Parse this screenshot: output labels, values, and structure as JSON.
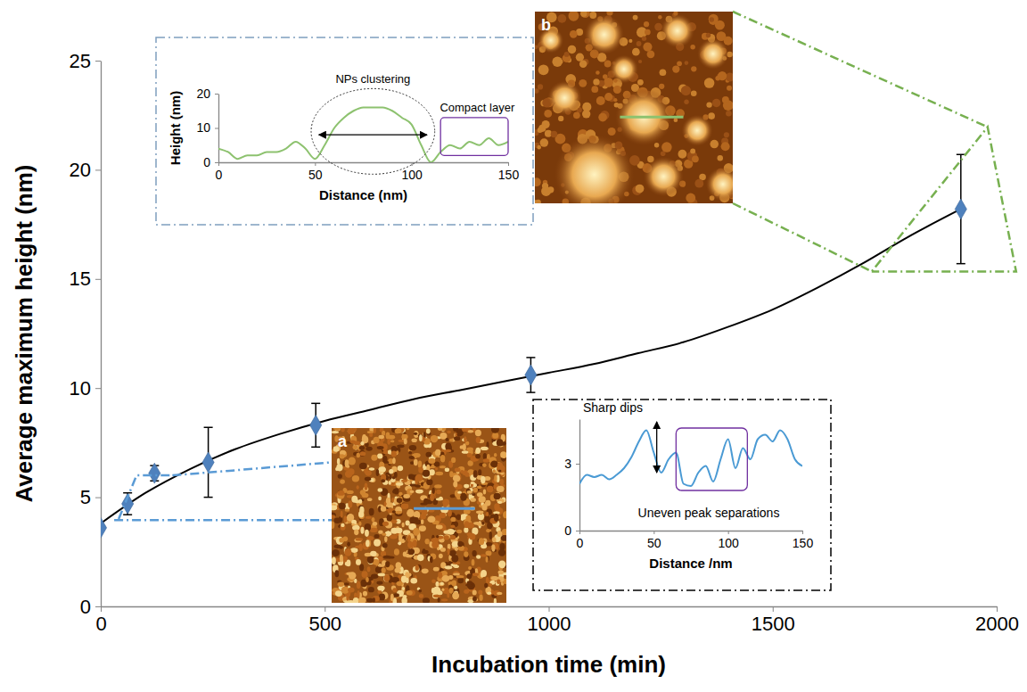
{
  "chart_data": [
    {
      "type": "scatter",
      "x_label": "Incubation time (min)",
      "y_label": "Average maximum height (nm)",
      "xlim": [
        0,
        2000
      ],
      "xticks": [
        0,
        500,
        1000,
        1500,
        2000
      ],
      "ylim": [
        0,
        25
      ],
      "yticks": [
        0,
        5,
        10,
        15,
        20,
        25
      ],
      "image_labels": [
        "a",
        "b"
      ],
      "series": [
        {
          "type": "scatter",
          "marker": "diamond",
          "color": "#4f81bd",
          "x": [
            0,
            60,
            120,
            240,
            480,
            960,
            1920
          ],
          "values": [
            3.6,
            4.7,
            6.1,
            6.6,
            8.3,
            10.6,
            18.2
          ],
          "errors": [
            null,
            0.5,
            0.35,
            1.6,
            1.0,
            0.8,
            2.5
          ]
        },
        {
          "type": "line",
          "color": "#000000",
          "line_style": "solid",
          "x": [
            0,
            100,
            200,
            300,
            400,
            500,
            600,
            700,
            800,
            900,
            1000,
            1100,
            1200,
            1300,
            1400,
            1500,
            1600,
            1700,
            1800,
            1920
          ],
          "values": [
            3.8,
            5.2,
            6.3,
            7.2,
            7.9,
            8.5,
            9.0,
            9.5,
            9.9,
            10.3,
            10.7,
            11.1,
            11.6,
            12.1,
            12.8,
            13.6,
            14.6,
            15.7,
            16.9,
            18.2
          ]
        }
      ]
    },
    {
      "type": "line",
      "x_label": "Distance (nm)",
      "y_label": "Height (nm)",
      "xlim": [
        0,
        150
      ],
      "xticks": [
        0,
        50,
        100,
        150
      ],
      "ylim": [
        0,
        20
      ],
      "yticks": [
        0,
        10,
        20
      ],
      "annotations": [
        "NPs clustering",
        "Compact layer"
      ],
      "series": [
        {
          "color": "#8dc26f",
          "x": [
            0,
            5,
            10,
            15,
            20,
            25,
            30,
            35,
            40,
            45,
            50,
            55,
            60,
            65,
            70,
            75,
            80,
            85,
            90,
            95,
            100,
            105,
            110,
            115,
            120,
            125,
            130,
            135,
            140,
            145,
            150
          ],
          "values": [
            4,
            3,
            1,
            2,
            2,
            3,
            3,
            4,
            6,
            4,
            1,
            5,
            10,
            13,
            15,
            16,
            16,
            16,
            15,
            13,
            11,
            5,
            0,
            3,
            5,
            4,
            6,
            5,
            7,
            5,
            6
          ]
        }
      ]
    },
    {
      "type": "line",
      "x_label": "Distance /nm",
      "xlim": [
        0,
        150
      ],
      "xticks": [
        0,
        50,
        100,
        150
      ],
      "ylim": [
        0,
        5
      ],
      "yticks": [
        0,
        3
      ],
      "annotations": [
        "Sharp dips",
        "Uneven peak separations"
      ],
      "series": [
        {
          "color": "#4a9ad4",
          "x": [
            0,
            5,
            10,
            15,
            20,
            25,
            30,
            35,
            40,
            45,
            50,
            55,
            60,
            65,
            70,
            75,
            80,
            85,
            90,
            95,
            100,
            105,
            110,
            115,
            120,
            125,
            130,
            135,
            140,
            145,
            150
          ],
          "values": [
            2.1,
            2.5,
            2.4,
            2.5,
            2.3,
            2.5,
            2.8,
            3.3,
            4.0,
            4.5,
            3.5,
            2.6,
            3.2,
            3.5,
            2.1,
            2.0,
            2.6,
            2.9,
            2.2,
            3.2,
            4.1,
            2.8,
            3.7,
            3.2,
            4.1,
            4.3,
            4.0,
            4.5,
            4.1,
            3.2,
            2.9
          ]
        }
      ]
    }
  ]
}
